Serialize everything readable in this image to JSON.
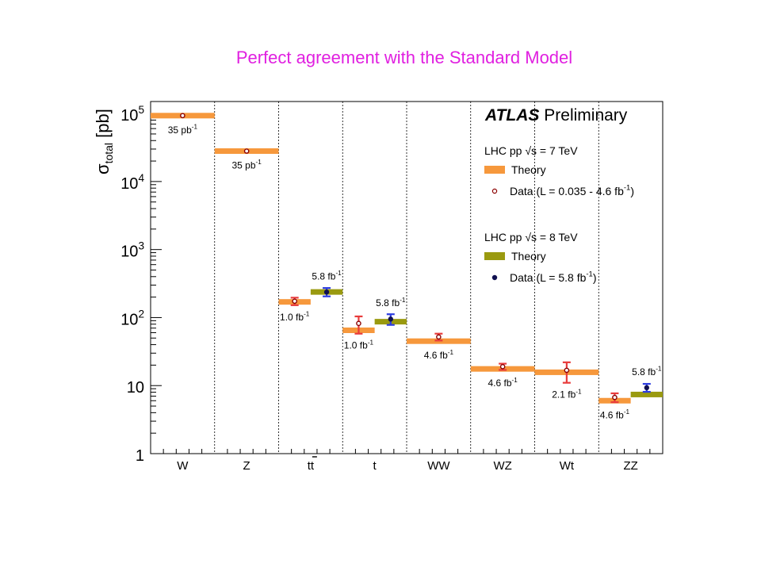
{
  "slide_title": "Perfect agreement with the Standard Model",
  "colors": {
    "theory_7tev": "#f6983c",
    "theory_8tev": "#9a9a10",
    "data_7tev_marker": "#8b0000",
    "data_8tev_marker": "#101050",
    "err_7tev": "#e83c3c",
    "err_8tev": "#2c3ce0",
    "title": "#e020e0"
  },
  "chart_data": {
    "type": "scatter",
    "log_y": true,
    "ylim": [
      1,
      150000
    ],
    "categories": [
      "W",
      "Z",
      "tt",
      "t",
      "WW",
      "WZ",
      "Wt",
      "ZZ"
    ],
    "ylabel": {
      "sigma": "σ",
      "sub": "total",
      "unit": "[pb]"
    },
    "y_ticks": [
      {
        "value": 1,
        "base": "1",
        "exp": ""
      },
      {
        "value": 10,
        "base": "10",
        "exp": ""
      },
      {
        "value": 100,
        "base": "10",
        "exp": "2"
      },
      {
        "value": 1000,
        "base": "10",
        "exp": "3"
      },
      {
        "value": 10000,
        "base": "10",
        "exp": "4"
      },
      {
        "value": 100000,
        "base": "10",
        "exp": "5"
      }
    ],
    "atlas_label": {
      "bold": "ATLAS",
      "rest": "Preliminary"
    },
    "legend": {
      "placement": "top-right",
      "group_7tev": {
        "header": "LHC pp √s = 7 TeV",
        "theory": "Theory",
        "data": "Data (L = 0.035 - 4.6 fb",
        "data_exp": "-1",
        "data_close": ")"
      },
      "group_8tev": {
        "header": "LHC pp √s = 8 TeV",
        "theory": "Theory",
        "data": "Data (L = 5.8 fb",
        "data_exp": "-1",
        "data_close": ")"
      }
    },
    "series": [
      {
        "energy": "7 TeV",
        "points": [
          {
            "category": "W",
            "theory": 93000,
            "data": 93000,
            "err": [
              93000,
              93000
            ],
            "lumi": "35 pb",
            "lumi_exp": "-1"
          },
          {
            "category": "Z",
            "theory": 28000,
            "data": 28000,
            "err": [
              28000,
              28000
            ],
            "lumi": "35 pb",
            "lumi_exp": "-1"
          },
          {
            "category": "tt",
            "theory": 170,
            "data": 174,
            "err": [
              152,
              196
            ],
            "lumi": "1.0 fb",
            "lumi_exp": "-1"
          },
          {
            "category": "t",
            "theory": 65,
            "data": 82,
            "err": [
              58,
              104
            ],
            "lumi": "1.0 fb",
            "lumi_exp": "-1"
          },
          {
            "category": "WW",
            "theory": 45,
            "data": 51.9,
            "err": [
              46,
              58
            ],
            "lumi": "4.6 fb",
            "lumi_exp": "-1"
          },
          {
            "category": "WZ",
            "theory": 17.6,
            "data": 19,
            "err": [
              17,
              21
            ],
            "lumi": "4.6 fb",
            "lumi_exp": "-1"
          },
          {
            "category": "Wt",
            "theory": 15.7,
            "data": 16.8,
            "err": [
              11,
              22
            ],
            "lumi": "2.1 fb",
            "lumi_exp": "-1"
          },
          {
            "category": "ZZ",
            "theory": 6.0,
            "data": 6.7,
            "err": [
              5.7,
              7.7
            ],
            "lumi": "4.6 fb",
            "lumi_exp": "-1"
          }
        ]
      },
      {
        "energy": "8 TeV",
        "points": [
          {
            "category": "tt",
            "theory": 238,
            "data": 237,
            "err": [
              205,
              272
            ],
            "lumi": "5.8 fb",
            "lumi_exp": "-1"
          },
          {
            "category": "t",
            "theory": 87,
            "data": 95,
            "err": [
              78,
              112
            ],
            "lumi": "5.8 fb",
            "lumi_exp": "-1"
          },
          {
            "category": "ZZ",
            "theory": 7.4,
            "data": 9.3,
            "err": [
              8.1,
              10.6
            ],
            "lumi": "5.8 fb",
            "lumi_exp": "-1"
          }
        ]
      }
    ]
  }
}
